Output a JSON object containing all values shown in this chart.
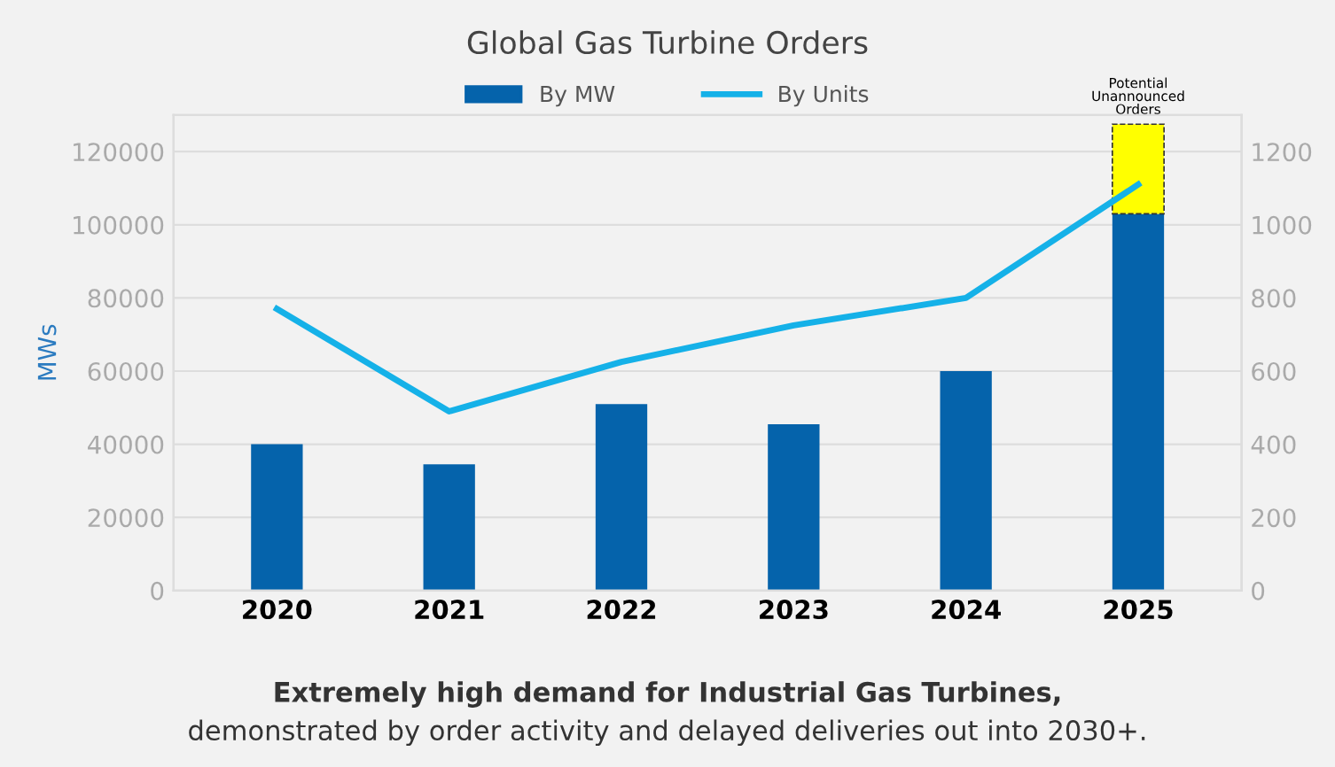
{
  "chart_data": {
    "type": "bar",
    "title": "Global Gas Turbine Orders",
    "ylabel": "MWs",
    "categories": [
      "2020",
      "2021",
      "2022",
      "2023",
      "2024",
      "2025"
    ],
    "stacked": true,
    "series": [
      {
        "name": "By MW",
        "color": "#0563ab",
        "values": [
          40000,
          34500,
          51000,
          45500,
          60000,
          103000
        ]
      },
      {
        "name": "Potential Unannounced Orders",
        "color": "#ffff00",
        "values": [
          null,
          null,
          null,
          null,
          null,
          24500
        ]
      },
      {
        "name": "By Units",
        "type": "line",
        "axis": "y2",
        "color": "#15b1e8",
        "values": [
          770,
          490,
          625,
          725,
          800,
          1110
        ]
      }
    ],
    "ylim": [
      0,
      130000
    ],
    "yticks": [
      0,
      20000,
      40000,
      60000,
      80000,
      100000,
      120000
    ],
    "y2lim": [
      0,
      1300
    ],
    "y2ticks": [
      0,
      200,
      400,
      600,
      800,
      1000,
      1200
    ],
    "grid": "y",
    "legend": "top",
    "annotations": [
      "Extremely high demand for Industrial Gas Turbines,",
      "demonstrated by order activity and delayed deliveries out into 2030+."
    ]
  }
}
